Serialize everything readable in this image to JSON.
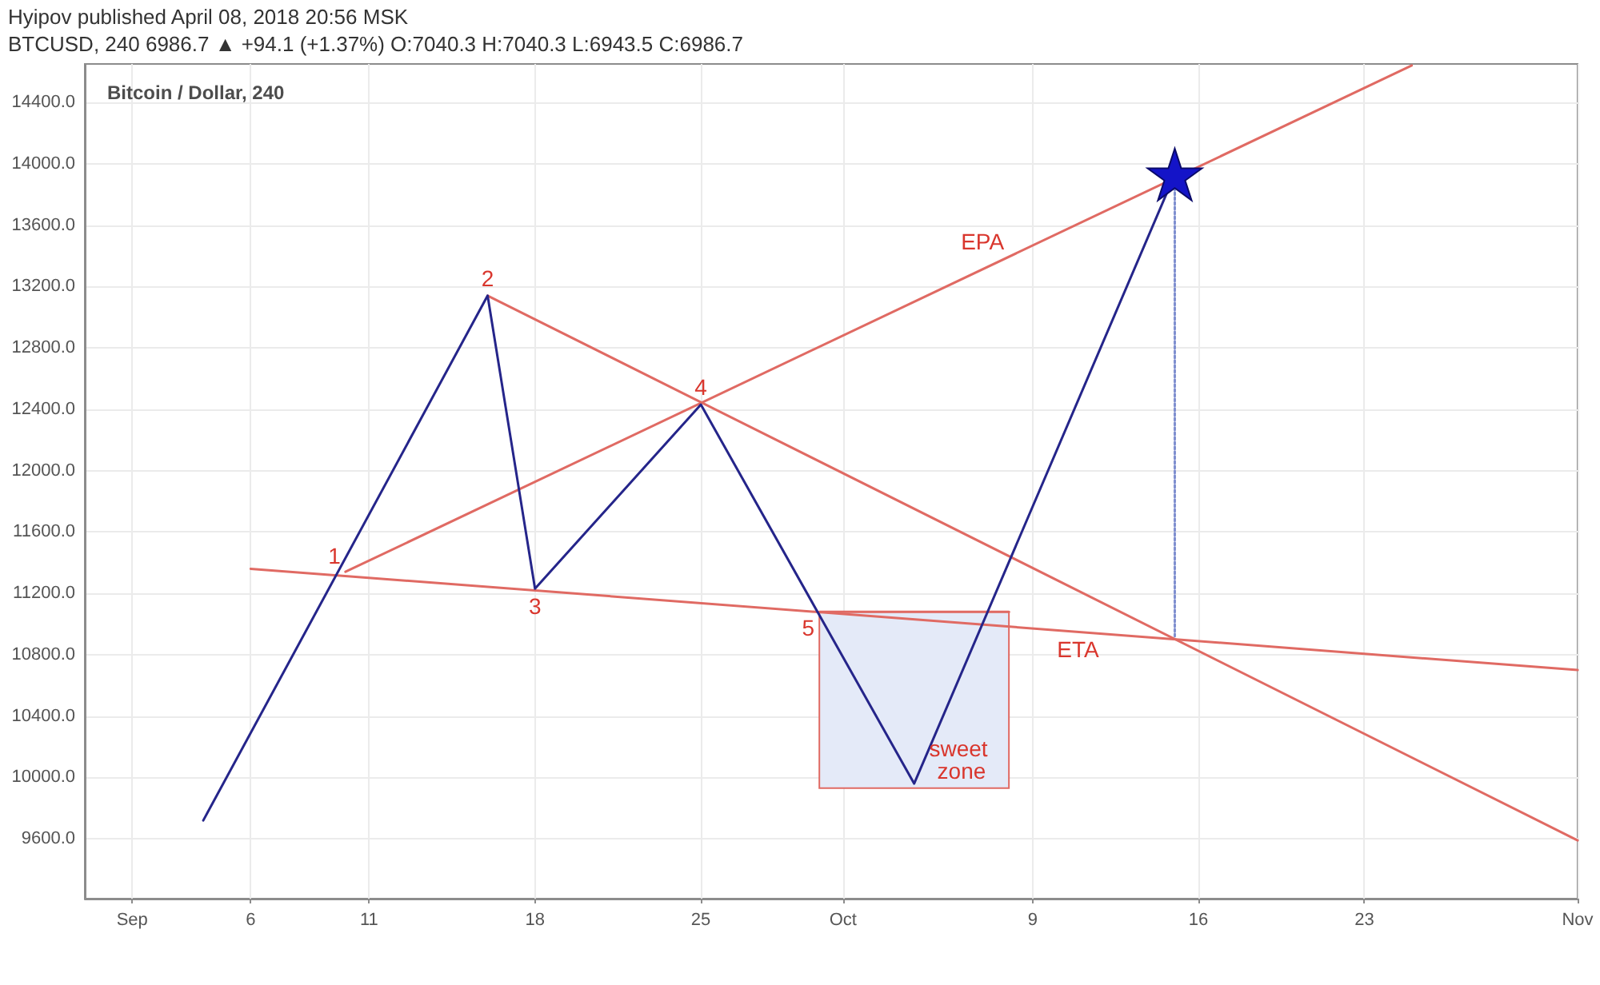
{
  "chart_data": {
    "type": "line",
    "title": "Bitcoin / Dollar, 240",
    "xlim": [
      "--08-30",
      "--11-01"
    ],
    "xticks": [
      {
        "value": "--09-01",
        "label": "Sep"
      },
      {
        "value": "--09-06",
        "label": "6"
      },
      {
        "value": "--09-11",
        "label": "11"
      },
      {
        "value": "--09-18",
        "label": "18"
      },
      {
        "value": "--09-25",
        "label": "25"
      },
      {
        "value": "--10-01",
        "label": "Oct"
      },
      {
        "value": "--10-09",
        "label": "9"
      },
      {
        "value": "--10-16",
        "label": "16"
      },
      {
        "value": "--10-23",
        "label": "23"
      },
      {
        "value": "--11-01",
        "label": "Nov"
      }
    ],
    "ylim": [
      9210,
      14650
    ],
    "yticks": [
      {
        "value": 9600,
        "label": "9600.0"
      },
      {
        "value": 10000,
        "label": "10000.0"
      },
      {
        "value": 10400,
        "label": "10400.0"
      },
      {
        "value": 10800,
        "label": "10800.0"
      },
      {
        "value": 11200,
        "label": "11200.0"
      },
      {
        "value": 11600,
        "label": "11600.0"
      },
      {
        "value": 12000,
        "label": "12000.0"
      },
      {
        "value": 12400,
        "label": "12400.0"
      },
      {
        "value": 12800,
        "label": "12800.0"
      },
      {
        "value": 13200,
        "label": "13200.0"
      },
      {
        "value": 13600,
        "label": "13600.0"
      },
      {
        "value": 14000,
        "label": "14000.0"
      },
      {
        "value": 14400,
        "label": "14400.0"
      }
    ],
    "grid": true,
    "marker": "none",
    "series": [
      {
        "color": "#e06a63",
        "x": [
          "--09-30",
          "--10-08"
        ],
        "values": [
          11080,
          11080
        ],
        "lower": [
          9930,
          9930
        ],
        "upper": [
          11080,
          11080
        ]
      },
      {
        "color": "#e06a63",
        "x": [
          "--09-06",
          "--11-01"
        ],
        "values": [
          11360,
          10700
        ]
      },
      {
        "color": "#e06a63",
        "x": [
          "--09-10",
          "--10-25"
        ],
        "values": [
          11340,
          14640
        ]
      },
      {
        "color": "#e06a63",
        "x": [
          "--09-16",
          "--11-01"
        ],
        "values": [
          13140,
          9590
        ]
      },
      {
        "color": "#7f8fcf",
        "line_style": "dotted",
        "x": [
          "--10-15",
          "--10-15"
        ],
        "values": [
          10920,
          13930
        ]
      },
      {
        "color": "#25258a",
        "x": [
          "--09-04",
          "--09-16",
          "--09-18",
          "--09-25",
          "--10-04",
          "--10-15"
        ],
        "values": [
          9720,
          13140,
          11230,
          12430,
          9960,
          13930
        ]
      },
      {
        "type": "scatter",
        "marker": "star",
        "color": "#1414c8",
        "x": [
          "--10-15"
        ],
        "values": [
          13930
        ]
      }
    ],
    "annotations": [
      "Hyipov published April 08, 2018 20:56 MSK",
      "BTCUSD, 240 6986.7 ▲ +94.1 (+1.37%) O:7040.3 H:7040.3 L:6943.5 C:6986.7",
      {
        "text": "1",
        "x": "--09-10",
        "y": 11340
      },
      {
        "text": "2",
        "x": "--09-16",
        "y": 13140
      },
      {
        "text": "3",
        "x": "--09-18",
        "y": 11230
      },
      {
        "text": "4",
        "x": "--09-25",
        "y": 12430
      },
      {
        "text": "5",
        "x": "--09-30",
        "y": 11080
      },
      {
        "text": "EPA",
        "x": "--10-08",
        "y": 13390
      },
      {
        "text": "ETA",
        "x": "--10-12",
        "y": 10940
      },
      {
        "text": "sweet zone",
        "x": "--10-06",
        "y": 9930
      }
    ]
  }
}
